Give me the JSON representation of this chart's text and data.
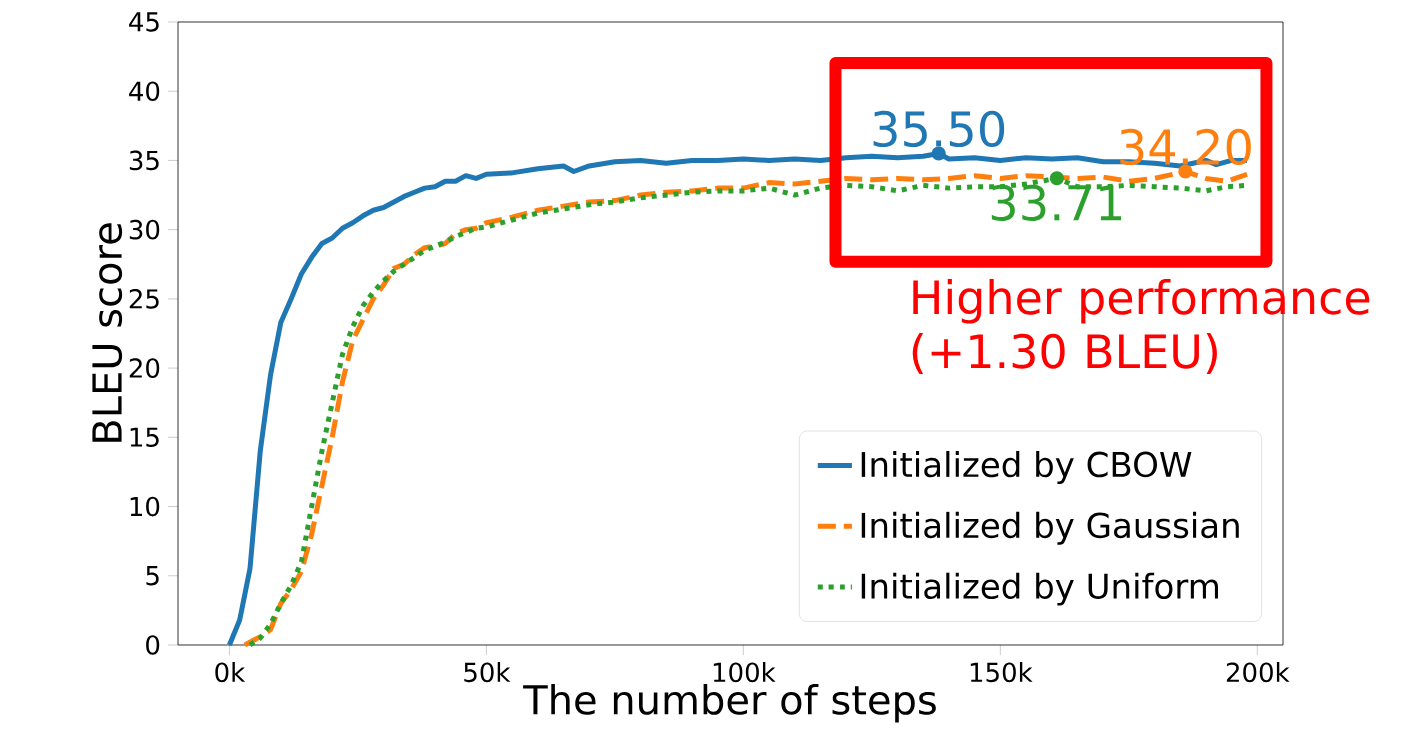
{
  "chart_data": {
    "type": "line",
    "xlabel": "The number of steps",
    "ylabel": "BLEU score",
    "xlim": [
      -10000,
      205000
    ],
    "ylim": [
      0,
      45
    ],
    "xticks": [
      {
        "value": 0,
        "label": "0k"
      },
      {
        "value": 50000,
        "label": "50k"
      },
      {
        "value": 100000,
        "label": "100k"
      },
      {
        "value": 150000,
        "label": "150k"
      },
      {
        "value": 200000,
        "label": "200k"
      }
    ],
    "yticks": [
      0,
      5,
      10,
      15,
      20,
      25,
      30,
      35,
      40,
      45
    ],
    "legend": "bottom right",
    "marker": "none",
    "series": [
      {
        "name": "Initialized by CBOW",
        "color": "#1f77b4",
        "line_style": "solid",
        "x": [
          0,
          2000,
          4000,
          6000,
          8000,
          10000,
          12000,
          14000,
          16000,
          18000,
          20000,
          22000,
          24000,
          26000,
          28000,
          30000,
          32000,
          34000,
          36000,
          38000,
          40000,
          42000,
          44000,
          46000,
          48000,
          50000,
          55000,
          60000,
          65000,
          67000,
          70000,
          75000,
          80000,
          85000,
          90000,
          95000,
          100000,
          105000,
          110000,
          115000,
          120000,
          125000,
          130000,
          135000,
          138000,
          140000,
          145000,
          150000,
          155000,
          160000,
          165000,
          170000,
          175000,
          180000,
          185000,
          190000,
          192000,
          195000,
          198000
        ],
        "values": [
          0,
          1.8,
          5.5,
          14,
          19.5,
          23.3,
          25,
          26.8,
          28,
          29,
          29.4,
          30.1,
          30.5,
          31,
          31.4,
          31.6,
          32,
          32.4,
          32.7,
          33,
          33.1,
          33.5,
          33.5,
          33.9,
          33.7,
          34,
          34.1,
          34.4,
          34.6,
          34.2,
          34.6,
          34.9,
          35,
          34.8,
          35,
          35,
          35.1,
          35,
          35.1,
          35,
          35.2,
          35.3,
          35.2,
          35.3,
          35.5,
          35.1,
          35.2,
          35,
          35.2,
          35.1,
          35.2,
          34.9,
          34.9,
          34.8,
          34.6,
          35,
          34.7,
          35,
          35
        ]
      },
      {
        "name": "Initialized by Gaussian",
        "color": "#ff7f0e",
        "line_style": "dashed",
        "x": [
          3000,
          4000,
          6000,
          8000,
          10000,
          12000,
          14000,
          16000,
          18000,
          20000,
          22000,
          24000,
          26000,
          28000,
          30000,
          32000,
          34000,
          36000,
          38000,
          40000,
          42000,
          44000,
          46000,
          48000,
          50000,
          55000,
          60000,
          65000,
          70000,
          75000,
          80000,
          85000,
          90000,
          95000,
          100000,
          105000,
          110000,
          115000,
          120000,
          125000,
          130000,
          135000,
          140000,
          145000,
          150000,
          155000,
          165000,
          170000,
          175000,
          180000,
          186000,
          190000,
          194000,
          198000
        ],
        "values": [
          0,
          0.2,
          0.6,
          1.1,
          3,
          4,
          5.3,
          8,
          11.5,
          15,
          19,
          22,
          23.5,
          25,
          26,
          27.2,
          27.5,
          28.2,
          28.7,
          28.8,
          29,
          29.7,
          30,
          30.1,
          30.5,
          30.9,
          31.4,
          31.7,
          32,
          32.1,
          32.5,
          32.7,
          32.8,
          33,
          33,
          33.4,
          33.3,
          33.5,
          33.7,
          33.6,
          33.7,
          33.6,
          33.7,
          33.9,
          33.7,
          33.9,
          33.7,
          33.8,
          33.5,
          33.7,
          34.2,
          33.7,
          33.5,
          34
        ]
      },
      {
        "name": "Initialized by Uniform",
        "color": "#2ca02c",
        "line_style": "dotted",
        "x": [
          4000,
          6000,
          8000,
          10000,
          12000,
          14000,
          16000,
          18000,
          20000,
          22000,
          24000,
          26000,
          28000,
          30000,
          32000,
          34000,
          36000,
          38000,
          40000,
          42000,
          44000,
          46000,
          48000,
          50000,
          55000,
          60000,
          65000,
          70000,
          75000,
          80000,
          85000,
          90000,
          95000,
          100000,
          105000,
          110000,
          115000,
          120000,
          125000,
          130000,
          135000,
          140000,
          145000,
          150000,
          155000,
          161000,
          165000,
          170000,
          175000,
          180000,
          185000,
          190000,
          194000,
          198000
        ],
        "values": [
          0,
          0.5,
          1.5,
          3,
          4.3,
          6,
          10,
          14,
          17.5,
          21,
          23,
          24.5,
          25.5,
          26.3,
          27,
          27.5,
          28,
          28.5,
          28.8,
          29.1,
          29.5,
          29.8,
          30.1,
          30.2,
          30.7,
          31.2,
          31.5,
          31.8,
          32,
          32.3,
          32.5,
          32.7,
          32.8,
          32.8,
          33,
          32.5,
          33,
          33.2,
          33.1,
          32.8,
          33.2,
          33,
          33.1,
          33.1,
          33.3,
          33.71,
          33.1,
          33.1,
          33.2,
          33.1,
          33,
          32.8,
          33.1,
          33.2
        ]
      }
    ],
    "annotations": [
      {
        "text": "35.50",
        "x": 138000,
        "y": 35.5
      },
      {
        "text": "34.20",
        "x": 186000,
        "y": 34.2
      },
      {
        "text": "33.71",
        "x": 161000,
        "y": 33.71
      },
      "Higher performance (+1.30 BLEU)"
    ]
  }
}
